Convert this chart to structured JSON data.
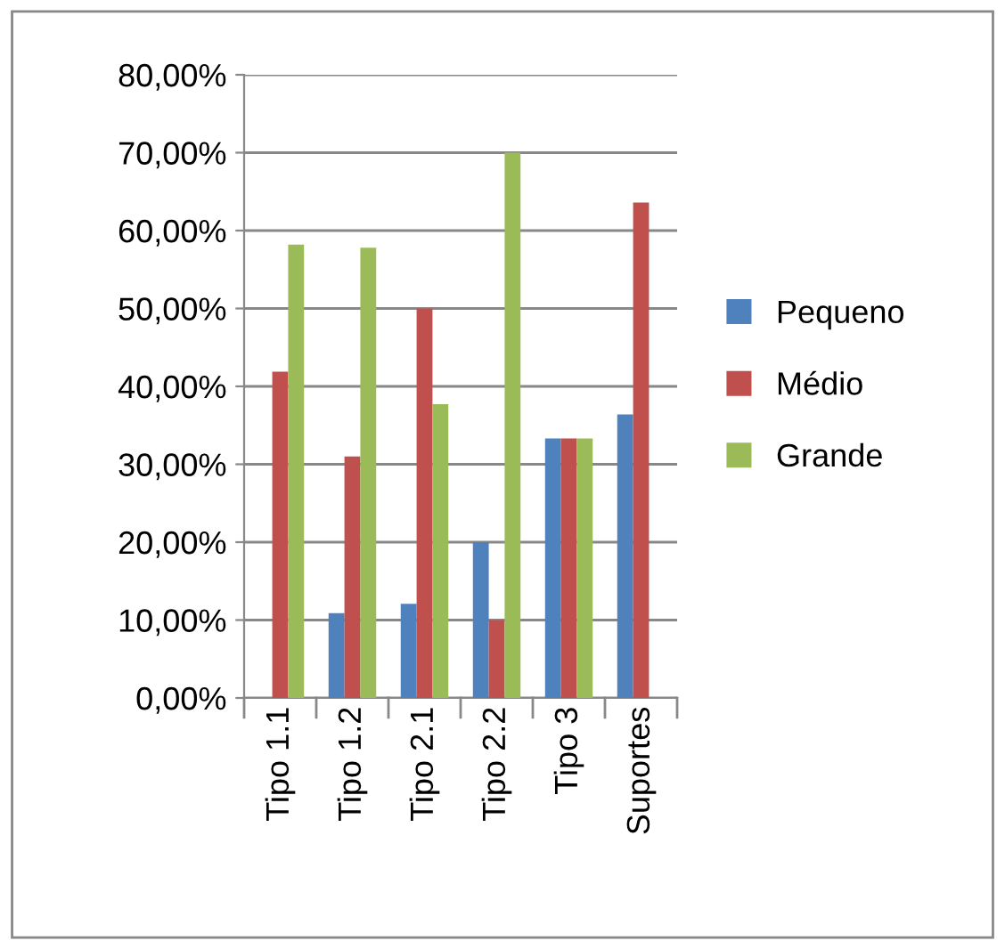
{
  "chart_data": {
    "type": "bar",
    "categories": [
      "Tipo 1.1",
      "Tipo 1.2",
      "Tipo 2.1",
      "Tipo 2.2",
      "Tipo 3",
      "Suportes"
    ],
    "series": [
      {
        "name": "Pequeno",
        "color": "#4f81bd",
        "values": [
          0,
          10.9,
          12.1,
          20,
          33.3,
          36.4
        ]
      },
      {
        "name": "Médio",
        "color": "#c0504d",
        "values": [
          41.9,
          31,
          50,
          10,
          33.3,
          63.6
        ]
      },
      {
        "name": "Grande",
        "color": "#9bbb59",
        "values": [
          58.2,
          57.8,
          37.7,
          70,
          33.3,
          0
        ]
      }
    ],
    "ylim": [
      0,
      80
    ],
    "yticks": [
      {
        "value": 0,
        "label": "0,00%"
      },
      {
        "value": 10,
        "label": "10,00%"
      },
      {
        "value": 20,
        "label": "20,00%"
      },
      {
        "value": 30,
        "label": "30,00%"
      },
      {
        "value": 40,
        "label": "40,00%"
      },
      {
        "value": 50,
        "label": "50,00%"
      },
      {
        "value": 60,
        "label": "60,00%"
      },
      {
        "value": 70,
        "label": "70,00%"
      },
      {
        "value": 80,
        "label": "80,00%"
      }
    ],
    "grid": "y",
    "legend": "right"
  }
}
